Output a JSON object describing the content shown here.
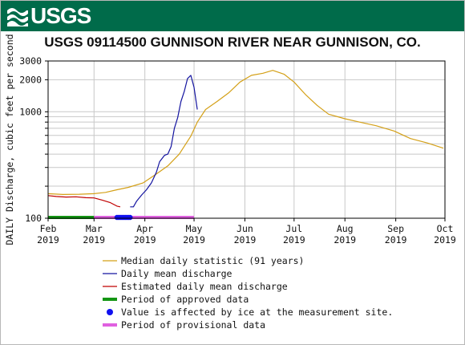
{
  "header": {
    "logo_text": "USGS",
    "logo_icon": "usgs-wave-icon",
    "brand_color": "#006b4a"
  },
  "chart_data": {
    "type": "line",
    "title": "USGS 09114500 GUNNISON RIVER NEAR GUNNISON, CO.",
    "ylabel": "DAILY Discharge, cubic feet per second",
    "xlabel": "",
    "yscale": "log",
    "ylim": [
      100,
      3000
    ],
    "y_ticks": [
      {
        "value": 100,
        "label": "100"
      },
      {
        "value": 200,
        "label": ""
      },
      {
        "value": 300,
        "label": ""
      },
      {
        "value": 400,
        "label": ""
      },
      {
        "value": 500,
        "label": ""
      },
      {
        "value": 600,
        "label": ""
      },
      {
        "value": 700,
        "label": ""
      },
      {
        "value": 800,
        "label": ""
      },
      {
        "value": 900,
        "label": ""
      },
      {
        "value": 1000,
        "label": "1000"
      },
      {
        "value": 2000,
        "label": "2000"
      },
      {
        "value": 3000,
        "label": "3000"
      }
    ],
    "xlim": [
      "2019-02-01",
      "2019-10-01"
    ],
    "x_ticks": [
      {
        "date": "2019-02-01",
        "month": "Feb",
        "year": "2019"
      },
      {
        "date": "2019-03-01",
        "month": "Mar",
        "year": "2019"
      },
      {
        "date": "2019-04-01",
        "month": "Apr",
        "year": "2019"
      },
      {
        "date": "2019-05-01",
        "month": "May",
        "year": "2019"
      },
      {
        "date": "2019-06-01",
        "month": "Jun",
        "year": "2019"
      },
      {
        "date": "2019-07-01",
        "month": "Jul",
        "year": "2019"
      },
      {
        "date": "2019-08-01",
        "month": "Aug",
        "year": "2019"
      },
      {
        "date": "2019-09-01",
        "month": "Sep",
        "year": "2019"
      },
      {
        "date": "2019-10-01",
        "month": "Oct",
        "year": "2019"
      }
    ],
    "grid": true,
    "legend_position": "bottom",
    "series": [
      {
        "name": "Median daily statistic (91 years)",
        "color": "#d4a017",
        "points": [
          [
            "2019-02-01",
            170
          ],
          [
            "2019-02-10",
            167
          ],
          [
            "2019-02-20",
            168
          ],
          [
            "2019-03-01",
            170
          ],
          [
            "2019-03-08",
            175
          ],
          [
            "2019-03-15",
            185
          ],
          [
            "2019-03-22",
            195
          ],
          [
            "2019-03-31",
            215
          ],
          [
            "2019-04-08",
            260
          ],
          [
            "2019-04-15",
            310
          ],
          [
            "2019-04-22",
            400
          ],
          [
            "2019-04-29",
            590
          ],
          [
            "2019-05-03",
            800
          ],
          [
            "2019-05-08",
            1050
          ],
          [
            "2019-05-15",
            1250
          ],
          [
            "2019-05-22",
            1500
          ],
          [
            "2019-05-29",
            1900
          ],
          [
            "2019-06-05",
            2200
          ],
          [
            "2019-06-12",
            2300
          ],
          [
            "2019-06-18",
            2450
          ],
          [
            "2019-06-25",
            2250
          ],
          [
            "2019-07-01",
            1900
          ],
          [
            "2019-07-08",
            1450
          ],
          [
            "2019-07-15",
            1150
          ],
          [
            "2019-07-22",
            950
          ],
          [
            "2019-08-01",
            860
          ],
          [
            "2019-08-10",
            800
          ],
          [
            "2019-08-20",
            740
          ],
          [
            "2019-08-31",
            660
          ],
          [
            "2019-09-10",
            560
          ],
          [
            "2019-09-20",
            510
          ],
          [
            "2019-09-30",
            455
          ]
        ]
      },
      {
        "name": "Daily mean discharge",
        "color": "#1414a0",
        "points": [
          [
            "2019-03-23",
            128
          ],
          [
            "2019-03-25",
            128
          ],
          [
            "2019-03-27",
            145
          ],
          [
            "2019-03-30",
            165
          ],
          [
            "2019-04-02",
            185
          ],
          [
            "2019-04-05",
            215
          ],
          [
            "2019-04-08",
            270
          ],
          [
            "2019-04-10",
            340
          ],
          [
            "2019-04-13",
            390
          ],
          [
            "2019-04-15",
            400
          ],
          [
            "2019-04-17",
            470
          ],
          [
            "2019-04-19",
            700
          ],
          [
            "2019-04-21",
            880
          ],
          [
            "2019-04-23",
            1250
          ],
          [
            "2019-04-25",
            1550
          ],
          [
            "2019-04-27",
            2050
          ],
          [
            "2019-04-29",
            2200
          ],
          [
            "2019-05-01",
            1700
          ],
          [
            "2019-05-03",
            1050
          ]
        ]
      },
      {
        "name": "Estimated daily mean discharge",
        "color": "#c00000",
        "points": [
          [
            "2019-02-01",
            163
          ],
          [
            "2019-02-06",
            160
          ],
          [
            "2019-02-12",
            158
          ],
          [
            "2019-02-18",
            159
          ],
          [
            "2019-02-24",
            156
          ],
          [
            "2019-03-01",
            155
          ],
          [
            "2019-03-06",
            148
          ],
          [
            "2019-03-11",
            140
          ],
          [
            "2019-03-15",
            130
          ],
          [
            "2019-03-17",
            128
          ]
        ]
      }
    ],
    "periods": [
      {
        "name": "Period of approved data",
        "color": "#149614",
        "start": "2019-02-01",
        "end": "2019-03-01"
      },
      {
        "name": "Value is affected by ice at the measurement site.",
        "color": "#1010f0",
        "start": "2019-03-15",
        "end": "2019-03-23"
      },
      {
        "name": "Period of provisional data",
        "color": "#e060e0",
        "start": "2019-03-01",
        "end": "2019-05-01"
      }
    ]
  }
}
